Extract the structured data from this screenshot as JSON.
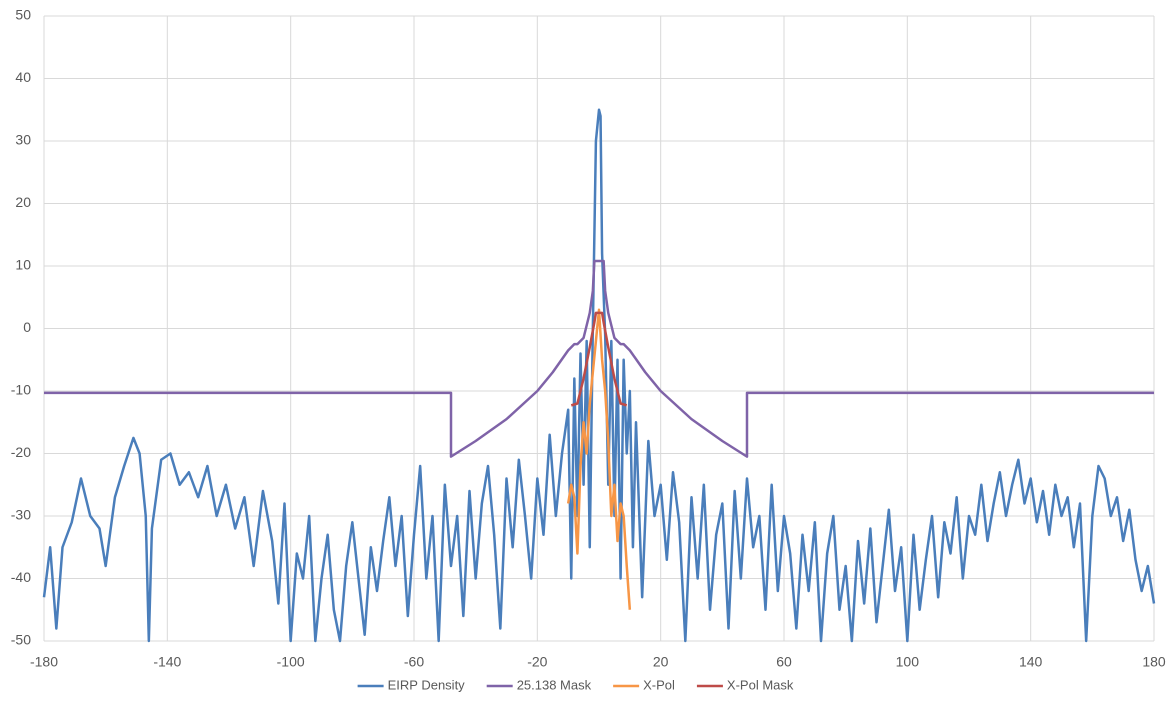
{
  "chart_data": {
    "type": "line",
    "xlim": [
      -180,
      180
    ],
    "xticks": [
      -180,
      -140,
      -100,
      -60,
      -20,
      20,
      60,
      100,
      140,
      180
    ],
    "ylim": [
      -50,
      50
    ],
    "yticks": [
      -50,
      -40,
      -30,
      -20,
      -10,
      0,
      10,
      20,
      30,
      40,
      50
    ],
    "grid": true,
    "legend": "bottom",
    "series": [
      {
        "name": "EIRP Density",
        "color": "#4a7ebb",
        "x": [
          -180,
          -178,
          -176,
          -174,
          -171,
          -168,
          -165,
          -162,
          -160,
          -157,
          -154,
          -151,
          -149,
          -147,
          -146,
          -145,
          -142,
          -139,
          -136,
          -133,
          -130,
          -127,
          -124,
          -121,
          -118,
          -115,
          -112,
          -109,
          -106,
          -104,
          -102,
          -100,
          -98,
          -96,
          -94,
          -92,
          -90,
          -88,
          -86,
          -84,
          -82,
          -80,
          -78,
          -76,
          -74,
          -72,
          -70,
          -68,
          -66,
          -64,
          -62,
          -60,
          -58,
          -56,
          -54,
          -52,
          -50,
          -48,
          -46,
          -44,
          -42,
          -40,
          -38,
          -36,
          -34,
          -32,
          -30,
          -28,
          -26,
          -24,
          -22,
          -20,
          -18,
          -16,
          -14,
          -12,
          -10,
          -9,
          -8,
          -7,
          -6,
          -5,
          -4,
          -3,
          -2,
          -1,
          0,
          0.5,
          1,
          2,
          3,
          4,
          5,
          6,
          7,
          8,
          9,
          10,
          11,
          12,
          14,
          16,
          18,
          20,
          22,
          24,
          26,
          28,
          30,
          32,
          34,
          36,
          38,
          40,
          42,
          44,
          46,
          48,
          50,
          52,
          54,
          56,
          58,
          60,
          62,
          64,
          66,
          68,
          70,
          72,
          74,
          76,
          78,
          80,
          82,
          84,
          86,
          88,
          90,
          92,
          94,
          96,
          98,
          100,
          102,
          104,
          106,
          108,
          110,
          112,
          114,
          116,
          118,
          120,
          122,
          124,
          126,
          128,
          130,
          132,
          134,
          136,
          138,
          140,
          142,
          144,
          146,
          148,
          150,
          152,
          154,
          156,
          158,
          160,
          162,
          164,
          166,
          168,
          170,
          172,
          174,
          176,
          178,
          180
        ],
        "values": [
          -43,
          -35,
          -48,
          -35,
          -31,
          -24,
          -30,
          -32,
          -38,
          -27,
          -22,
          -17.5,
          -20,
          -30,
          -50,
          -32,
          -21,
          -20,
          -25,
          -23,
          -27,
          -22,
          -30,
          -25,
          -32,
          -27,
          -38,
          -26,
          -34,
          -44,
          -28,
          -50,
          -36,
          -40,
          -30,
          -50,
          -40,
          -33,
          -45,
          -50,
          -38,
          -31,
          -40,
          -49,
          -35,
          -42,
          -34,
          -27,
          -38,
          -30,
          -46,
          -33,
          -22,
          -40,
          -30,
          -50,
          -25,
          -38,
          -30,
          -46,
          -26,
          -40,
          -28,
          -22,
          -33,
          -48,
          -24,
          -35,
          -21,
          -30,
          -40,
          -24,
          -33,
          -17,
          -30,
          -20,
          -13,
          -40,
          -8,
          -30,
          -4,
          -25,
          -2,
          -35,
          0,
          30,
          35,
          34,
          12,
          -1,
          -25,
          -2,
          -30,
          -5,
          -40,
          -5,
          -20,
          -10,
          -35,
          -15,
          -43,
          -18,
          -30,
          -25,
          -37,
          -23,
          -31,
          -50,
          -27,
          -40,
          -25,
          -45,
          -33,
          -28,
          -48,
          -26,
          -40,
          -24,
          -35,
          -30,
          -45,
          -25,
          -42,
          -30,
          -36,
          -48,
          -33,
          -42,
          -31,
          -50,
          -36,
          -30,
          -45,
          -38,
          -50,
          -34,
          -44,
          -32,
          -47,
          -38,
          -29,
          -42,
          -35,
          -50,
          -33,
          -45,
          -37,
          -30,
          -43,
          -31,
          -36,
          -27,
          -40,
          -30,
          -33,
          -25,
          -34,
          -28,
          -23,
          -30,
          -25,
          -21,
          -28,
          -24,
          -31,
          -26,
          -33,
          -25,
          -30,
          -27,
          -35,
          -28,
          -50,
          -30,
          -22,
          -24,
          -30,
          -27,
          -34,
          -29,
          -37,
          -42,
          -38,
          -44
        ]
      },
      {
        "name": "25.138 Mask",
        "color": "#7f63a8",
        "x": [
          -180,
          -48,
          -48,
          -40,
          -30,
          -20,
          -15,
          -10,
          -8,
          -7,
          -5,
          -4,
          -3,
          -2,
          -1.5,
          -1,
          1,
          1.5,
          2,
          3,
          4,
          5,
          7,
          8,
          10,
          15,
          20,
          30,
          40,
          48,
          48,
          180
        ],
        "values": [
          -10.3,
          -10.3,
          -20.5,
          -18,
          -14.5,
          -10,
          -7,
          -3.5,
          -2.5,
          -2.5,
          -1.5,
          0.5,
          2.5,
          6,
          10.8,
          10.8,
          10.8,
          10.8,
          6,
          2.5,
          0.5,
          -1.5,
          -2.5,
          -2.5,
          -3.5,
          -7,
          -10,
          -14.5,
          -18,
          -20.5,
          -10.3,
          -10.3
        ]
      },
      {
        "name": "X-Pol",
        "color": "#f79646",
        "x": [
          -10,
          -9,
          -8,
          -7,
          -6,
          -5,
          -4,
          -3,
          -2,
          -1,
          0,
          1,
          2,
          3,
          4,
          5,
          6,
          7,
          8,
          9,
          10
        ],
        "values": [
          -28,
          -25,
          -27,
          -36,
          -22,
          -15,
          -20,
          -12,
          -7,
          -2,
          3,
          -5,
          -10,
          -18,
          -30,
          -25,
          -34,
          -28,
          -30,
          -38,
          -45
        ]
      },
      {
        "name": "X-Pol Mask",
        "color": "#be4b48",
        "x": [
          -9,
          -7,
          -5,
          -3,
          -1.5,
          -1,
          1,
          1.5,
          3,
          5,
          7,
          9
        ],
        "values": [
          -12.3,
          -12,
          -8,
          -3,
          1,
          2.5,
          2.5,
          1,
          -3,
          -8,
          -12,
          -12.3
        ]
      }
    ]
  }
}
